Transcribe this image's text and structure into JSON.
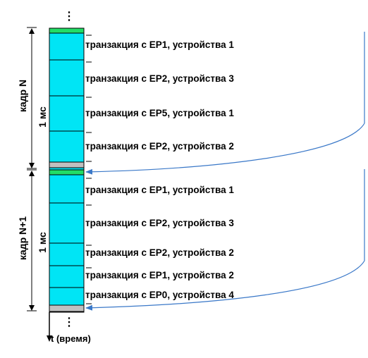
{
  "frames": [
    {
      "label": "кадр N",
      "duration": "1 мс",
      "transactions": [
        "транзакция с EP1, устройства 1",
        "транзакция с EP2, устройства 3",
        "транзакция с EP5, устройства 1",
        "транзакция с EP2, устройства 2"
      ]
    },
    {
      "label": "кадр N+1",
      "duration": "1 мс",
      "transactions": [
        "транзакция с EP1, устройства 1",
        "транзакция с EP2, устройства 3",
        "транзакция с EP2, устройства 2",
        "транзакция с EP1, устройства 2",
        "транзакция с EP0, устройства 4"
      ]
    }
  ],
  "time_axis_label": "t (время)",
  "ellipsis": "⋮",
  "colors": {
    "slot_fill": "#00e5f5",
    "sof_green": "#22dd66",
    "eof_gray": "#c0c0c0",
    "arrow_blue": "#3a78c8",
    "line": "#000000"
  }
}
